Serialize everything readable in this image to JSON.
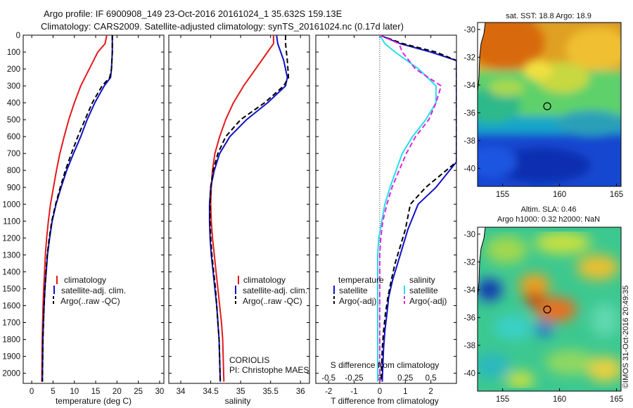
{
  "header": {
    "title_line1": "Argo profile: IF 6900908_149 23-Oct-2016 20161024_1 35.632S 159.13E",
    "title_line2": "Climatology: CARS2009. Satellite-adjusted climatology: synTS_20161024.nc (0.17d later)"
  },
  "colors": {
    "climatology": "#e41a1c",
    "satellite": "#1010c8",
    "argo": "#000000",
    "satellite_salinity": "#22e0e8",
    "argo_salinity": "#e020e0"
  },
  "chart_data": [
    {
      "type": "line",
      "panel": "temperature",
      "xlabel": "temperature (deg C)",
      "xlim": [
        -2,
        31
      ],
      "xticks": [
        "0",
        "5",
        "10",
        "15",
        "20",
        "25",
        "30"
      ],
      "xtick_values": [
        0,
        5,
        10,
        15,
        20,
        25,
        30
      ],
      "ylim": [
        0,
        2060
      ],
      "yticks": [
        "0",
        "100",
        "200",
        "300",
        "400",
        "500",
        "600",
        "700",
        "800",
        "900",
        "1000",
        "1100",
        "1200",
        "1300",
        "1400",
        "1500",
        "1600",
        "1700",
        "1800",
        "1900",
        "2000"
      ],
      "ytick_values": [
        0,
        100,
        200,
        300,
        400,
        500,
        600,
        700,
        800,
        900,
        1000,
        1100,
        1200,
        1300,
        1400,
        1500,
        1600,
        1700,
        1800,
        1900,
        2000
      ],
      "y_reversed": true,
      "legend": [
        "climatology",
        "satellite-adj. clim.",
        "Argo(..raw -QC)"
      ],
      "series": [
        {
          "name": "climatology",
          "style": "solid",
          "color": "climatology",
          "x": [
            17.6,
            17.2,
            15.5,
            13.5,
            11.5,
            10.0,
            8.7,
            7.6,
            6.6,
            5.8,
            5.1,
            4.4,
            3.9,
            3.5,
            3.2,
            3.0,
            2.8,
            2.65,
            2.55,
            2.45,
            2.38
          ],
          "y": [
            0,
            50,
            100,
            200,
            300,
            400,
            500,
            600,
            700,
            800,
            900,
            1000,
            1100,
            1200,
            1300,
            1400,
            1500,
            1600,
            1700,
            1800,
            2050
          ]
        },
        {
          "name": "satellite-adj. clim.",
          "style": "solid",
          "color": "satellite",
          "x": [
            18.9,
            18.9,
            18.7,
            18.5,
            17.0,
            14.8,
            13.0,
            11.5,
            9.8,
            8.2,
            6.9,
            5.7,
            4.8,
            4.2,
            3.7,
            3.4,
            3.1,
            2.9,
            2.75,
            2.62,
            2.48
          ],
          "y": [
            0,
            100,
            200,
            250,
            300,
            400,
            500,
            600,
            700,
            800,
            900,
            1000,
            1100,
            1200,
            1300,
            1400,
            1500,
            1600,
            1700,
            1800,
            2050
          ]
        },
        {
          "name": "Argo(..raw -QC)",
          "style": "dashed",
          "color": "argo",
          "x": [
            18.9,
            18.9,
            18.7,
            18.3,
            16.5,
            14.2,
            12.5,
            10.8,
            9.3,
            7.9,
            6.7,
            5.6,
            4.7,
            4.1,
            3.65,
            3.35,
            3.1,
            2.9,
            2.75,
            2.62,
            2.5
          ],
          "y": [
            0,
            100,
            200,
            250,
            300,
            400,
            500,
            600,
            700,
            800,
            900,
            1000,
            1100,
            1200,
            1300,
            1400,
            1500,
            1600,
            1700,
            1800,
            2050
          ]
        }
      ]
    },
    {
      "type": "line",
      "panel": "salinity",
      "xlabel": "salinity",
      "xlim": [
        33.8,
        36.15
      ],
      "xticks": [
        "34",
        "34.5",
        "35",
        "35.5",
        "36"
      ],
      "xtick_values": [
        34,
        34.5,
        35,
        35.5,
        36
      ],
      "ylim": [
        0,
        2060
      ],
      "y_reversed": true,
      "legend": [
        "climatology",
        "satellite-adj. clim.",
        "Argo(..raw -QC)"
      ],
      "annotation_lines": [
        "CORIOLIS",
        "PI: Christophe MAES"
      ],
      "series": [
        {
          "name": "climatology",
          "style": "solid",
          "color": "climatology",
          "x": [
            35.55,
            35.55,
            35.45,
            35.25,
            35.05,
            34.88,
            34.75,
            34.65,
            34.57,
            34.53,
            34.51,
            34.5,
            34.51,
            34.53,
            34.56,
            34.59,
            34.62,
            34.65,
            34.68,
            34.7,
            34.72
          ],
          "y": [
            0,
            50,
            100,
            200,
            300,
            400,
            500,
            600,
            700,
            800,
            900,
            1000,
            1100,
            1200,
            1300,
            1400,
            1500,
            1600,
            1700,
            1800,
            2050
          ]
        },
        {
          "name": "satellite-adj. clim.",
          "style": "solid",
          "color": "satellite",
          "x": [
            35.6,
            35.62,
            35.72,
            35.78,
            35.75,
            35.45,
            35.1,
            34.82,
            34.65,
            34.56,
            34.5,
            34.48,
            34.48,
            34.49,
            34.51,
            34.54,
            34.57,
            34.6,
            34.62,
            34.64,
            34.66
          ],
          "y": [
            0,
            50,
            150,
            250,
            300,
            400,
            500,
            600,
            700,
            800,
            900,
            1000,
            1100,
            1200,
            1300,
            1400,
            1500,
            1600,
            1700,
            1800,
            2050
          ]
        },
        {
          "name": "Argo(..raw -QC)",
          "style": "dashed",
          "color": "argo",
          "x": [
            35.75,
            35.75,
            35.78,
            35.8,
            35.72,
            35.4,
            35.0,
            34.75,
            34.62,
            34.54,
            34.5,
            34.49,
            34.49,
            34.5,
            34.52,
            34.55,
            34.58,
            34.6,
            34.62,
            34.64,
            34.66
          ],
          "y": [
            0,
            50,
            150,
            250,
            300,
            400,
            500,
            600,
            700,
            800,
            900,
            1000,
            1100,
            1200,
            1300,
            1400,
            1500,
            1600,
            1700,
            1800,
            2050
          ]
        }
      ]
    },
    {
      "type": "line",
      "panel": "difference",
      "xlabel": "T difference from climatology",
      "xlabel_top": "S difference from climatology",
      "xlim": [
        -2.5,
        3.0
      ],
      "xticks": [
        "-2",
        "-1",
        "0",
        "1",
        "2"
      ],
      "xtick_values": [
        -2,
        -1,
        0,
        1,
        2
      ],
      "xticks_s": [
        "-0.5",
        "-0.25",
        "0",
        "0.25",
        "0.5"
      ],
      "xtick_s_values": [
        -0.5,
        -0.25,
        0,
        0.25,
        0.5
      ],
      "ylim": [
        0,
        2060
      ],
      "y_reversed": true,
      "legend_temperature_title": "temperature",
      "legend_salinity_title": "salinity",
      "legend": [
        "satellite",
        "Argo(-adj)",
        "satellite",
        "Argo(-adj)"
      ],
      "series": [
        {
          "name": "temperature satellite",
          "style": "solid",
          "color": "satellite",
          "units": "T",
          "x": [
            0.0,
            0.8,
            2.0,
            3.0,
            3.0,
            3.0,
            2.2,
            1.5,
            1.1,
            0.9,
            0.7,
            0.5,
            0.35,
            0.28,
            0.2,
            0.15,
            0.12,
            0.1
          ],
          "y": [
            0,
            50,
            100,
            150,
            280,
            750,
            900,
            1000,
            1150,
            1250,
            1350,
            1450,
            1550,
            1650,
            1750,
            1850,
            1950,
            2050
          ]
        },
        {
          "name": "temperature Argo(-adj)",
          "style": "dashed",
          "color": "argo",
          "units": "T",
          "x": [
            0.0,
            0.9,
            2.2,
            3.0,
            3.0,
            3.0,
            1.8,
            1.2,
            1.0,
            0.8,
            0.6,
            0.45,
            0.32,
            0.22,
            0.15,
            0.1,
            0.08,
            0.05
          ],
          "y": [
            0,
            50,
            100,
            150,
            280,
            750,
            900,
            1000,
            1150,
            1250,
            1350,
            1450,
            1550,
            1650,
            1750,
            1850,
            1950,
            2050
          ]
        },
        {
          "name": "salinity satellite",
          "style": "solid",
          "color": "satellite_salinity",
          "units": "S",
          "x": [
            0.0,
            0.05,
            0.15,
            0.38,
            0.55,
            0.55,
            0.45,
            0.32,
            0.22,
            0.16,
            0.1,
            0.05,
            0.02,
            -0.01,
            -0.02,
            -0.02,
            -0.02,
            -0.02,
            -0.02,
            -0.02
          ],
          "y": [
            0,
            50,
            100,
            200,
            300,
            400,
            500,
            600,
            700,
            800,
            900,
            1000,
            1100,
            1200,
            1300,
            1400,
            1500,
            1600,
            1800,
            2050
          ]
        },
        {
          "name": "salinity Argo(-adj)",
          "style": "dashed",
          "color": "argo_salinity",
          "units": "S",
          "x": [
            0.0,
            0.19,
            0.22,
            0.35,
            0.6,
            0.55,
            0.48,
            0.35,
            0.26,
            0.19,
            0.12,
            0.07,
            0.03,
            0.01,
            0.0,
            0.0,
            0.0,
            0.0,
            0.0,
            0.0
          ],
          "y": [
            0,
            50,
            100,
            200,
            300,
            400,
            500,
            600,
            700,
            800,
            900,
            1000,
            1100,
            1200,
            1300,
            1400,
            1500,
            1600,
            1800,
            2050
          ]
        }
      ]
    },
    {
      "type": "heatmap",
      "panel": "sst_map",
      "title": "sat. SST: 18.8 Argo: 18.9",
      "xticks": [
        "155",
        "160",
        "165"
      ],
      "xtick_values": [
        155,
        160,
        165
      ],
      "yticks": [
        "-30",
        "-32",
        "-34",
        "-36",
        "-38",
        "-40"
      ],
      "ytick_values": [
        -30,
        -32,
        -34,
        -36,
        -38,
        -40
      ],
      "xlim": [
        152.8,
        165.4
      ],
      "ylim": [
        -41.3,
        -29.5
      ],
      "marker": {
        "lon": 159.13,
        "lat": -35.632
      }
    },
    {
      "type": "heatmap",
      "panel": "sla_map",
      "title_line1": "Altim. SLA: 0.46",
      "title_line2": "Argo h1000: 0.32 h2000: NaN",
      "xticks": [
        "155",
        "160",
        "165"
      ],
      "xtick_values": [
        155,
        160,
        165
      ],
      "yticks": [
        "-30",
        "-32",
        "-34",
        "-36",
        "-38",
        "-40"
      ],
      "ytick_values": [
        -30,
        -32,
        -34,
        -36,
        -38,
        -40
      ],
      "xlim": [
        152.8,
        165.4
      ],
      "ylim": [
        -41.3,
        -29.5
      ],
      "marker": {
        "lon": 159.13,
        "lat": -35.632
      }
    }
  ],
  "credit": "©IMOS 31-Oct-2016 20:49:35"
}
